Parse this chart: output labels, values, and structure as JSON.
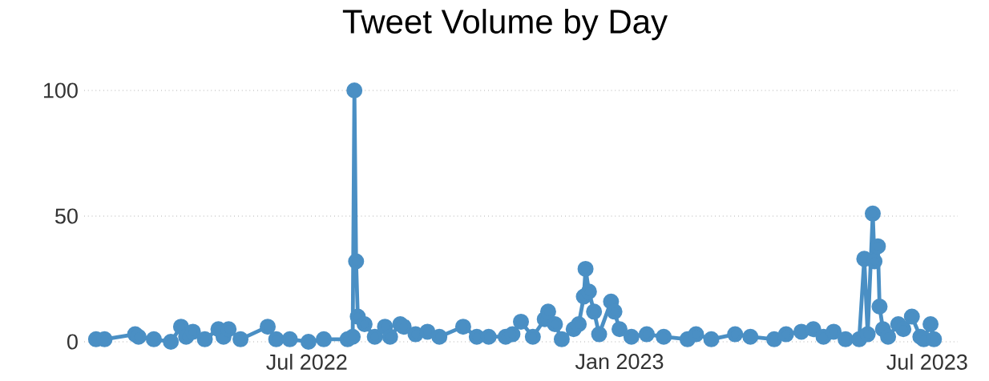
{
  "chart_data": {
    "type": "line",
    "title": "Tweet Volume by Day",
    "color": "#4a8fc4",
    "marker": "circle",
    "line_style": "solid",
    "grid": "y",
    "x": [
      "2022-02-27",
      "2022-03-04",
      "2022-03-22",
      "2022-03-24",
      "2022-04-02",
      "2022-04-12",
      "2022-04-18",
      "2022-04-21",
      "2022-04-25",
      "2022-05-02",
      "2022-05-10",
      "2022-05-13",
      "2022-05-16",
      "2022-05-23",
      "2022-06-08",
      "2022-06-13",
      "2022-06-21",
      "2022-07-02",
      "2022-07-11",
      "2022-07-25",
      "2022-07-28",
      "2022-07-29",
      "2022-07-30",
      "2022-07-31",
      "2022-08-04",
      "2022-08-10",
      "2022-08-16",
      "2022-08-19",
      "2022-08-25",
      "2022-08-27",
      "2022-09-03",
      "2022-09-10",
      "2022-09-17",
      "2022-10-01",
      "2022-10-09",
      "2022-10-16",
      "2022-10-26",
      "2022-10-30",
      "2022-11-04",
      "2022-11-11",
      "2022-11-18",
      "2022-11-20",
      "2022-11-24",
      "2022-11-28",
      "2022-12-05",
      "2022-12-08",
      "2022-12-11",
      "2022-12-12",
      "2022-12-14",
      "2022-12-17",
      "2022-12-20",
      "2022-12-27",
      "2022-12-29",
      "2023-01-01",
      "2023-01-08",
      "2023-01-17",
      "2023-01-27",
      "2023-02-10",
      "2023-02-15",
      "2023-02-24",
      "2023-03-10",
      "2023-03-19",
      "2023-04-02",
      "2023-04-09",
      "2023-04-18",
      "2023-04-25",
      "2023-05-01",
      "2023-05-07",
      "2023-05-14",
      "2023-05-22",
      "2023-05-25",
      "2023-05-27",
      "2023-05-30",
      "2023-05-31",
      "2023-06-02",
      "2023-06-03",
      "2023-06-05",
      "2023-06-08",
      "2023-06-14",
      "2023-06-17",
      "2023-06-22",
      "2023-06-27",
      "2023-06-29",
      "2023-07-03",
      "2023-07-05"
    ],
    "values": [
      1,
      1,
      3,
      2,
      1,
      0,
      6,
      2,
      4,
      1,
      5,
      2,
      5,
      1,
      6,
      1,
      1,
      0,
      1,
      1,
      2,
      100,
      32,
      10,
      7,
      2,
      6,
      2,
      7,
      6,
      3,
      4,
      2,
      6,
      2,
      2,
      2,
      3,
      8,
      2,
      9,
      12,
      7,
      1,
      5,
      7,
      18,
      29,
      20,
      12,
      3,
      16,
      12,
      5,
      2,
      3,
      2,
      1,
      3,
      1,
      3,
      2,
      1,
      3,
      4,
      5,
      2,
      4,
      1,
      1,
      33,
      3,
      51,
      32,
      38,
      14,
      5,
      2,
      7,
      5,
      10,
      2,
      1,
      7,
      1
    ],
    "xlim": [
      "2022-02-20",
      "2023-07-19"
    ],
    "ylim": [
      0,
      100
    ],
    "xticks": [
      {
        "value": "2022-07-01",
        "label": "Jul 2022"
      },
      {
        "value": "2023-01-01",
        "label": "Jan 2023"
      },
      {
        "value": "2023-07-01",
        "label": "Jul 2023"
      }
    ],
    "yticks": [
      0,
      50,
      100
    ]
  }
}
